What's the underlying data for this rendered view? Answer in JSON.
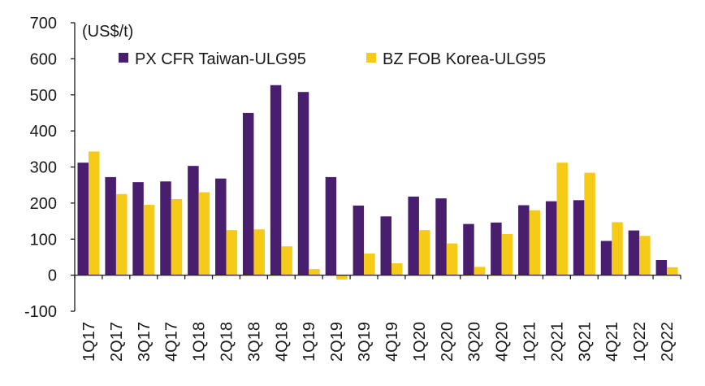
{
  "chart_data": {
    "type": "bar",
    "unit_label": "(US$/t)",
    "categories": [
      "1Q17",
      "2Q17",
      "3Q17",
      "4Q17",
      "1Q18",
      "2Q18",
      "3Q18",
      "4Q18",
      "1Q19",
      "2Q19",
      "3Q19",
      "4Q19",
      "1Q20",
      "2Q20",
      "3Q20",
      "4Q20",
      "1Q21",
      "2Q21",
      "3Q21",
      "4Q21",
      "1Q22",
      "2Q22"
    ],
    "series": [
      {
        "name": "PX CFR Taiwan-ULG95",
        "color": "#4a1e6e",
        "values": [
          312,
          272,
          258,
          260,
          303,
          268,
          450,
          527,
          508,
          272,
          193,
          163,
          218,
          213,
          142,
          146,
          194,
          205,
          208,
          95,
          124,
          42
        ]
      },
      {
        "name": "BZ FOB Korea-ULG95",
        "color": "#f5cb18",
        "values": [
          343,
          225,
          195,
          211,
          230,
          125,
          127,
          80,
          17,
          -12,
          60,
          33,
          125,
          88,
          23,
          114,
          180,
          312,
          284,
          147,
          109,
          22
        ]
      }
    ],
    "ylim": [
      -100,
      700
    ],
    "yticks": [
      "-100",
      "0",
      "100",
      "200",
      "300",
      "400",
      "500",
      "600",
      "700"
    ],
    "legend": "top",
    "grid": false
  }
}
